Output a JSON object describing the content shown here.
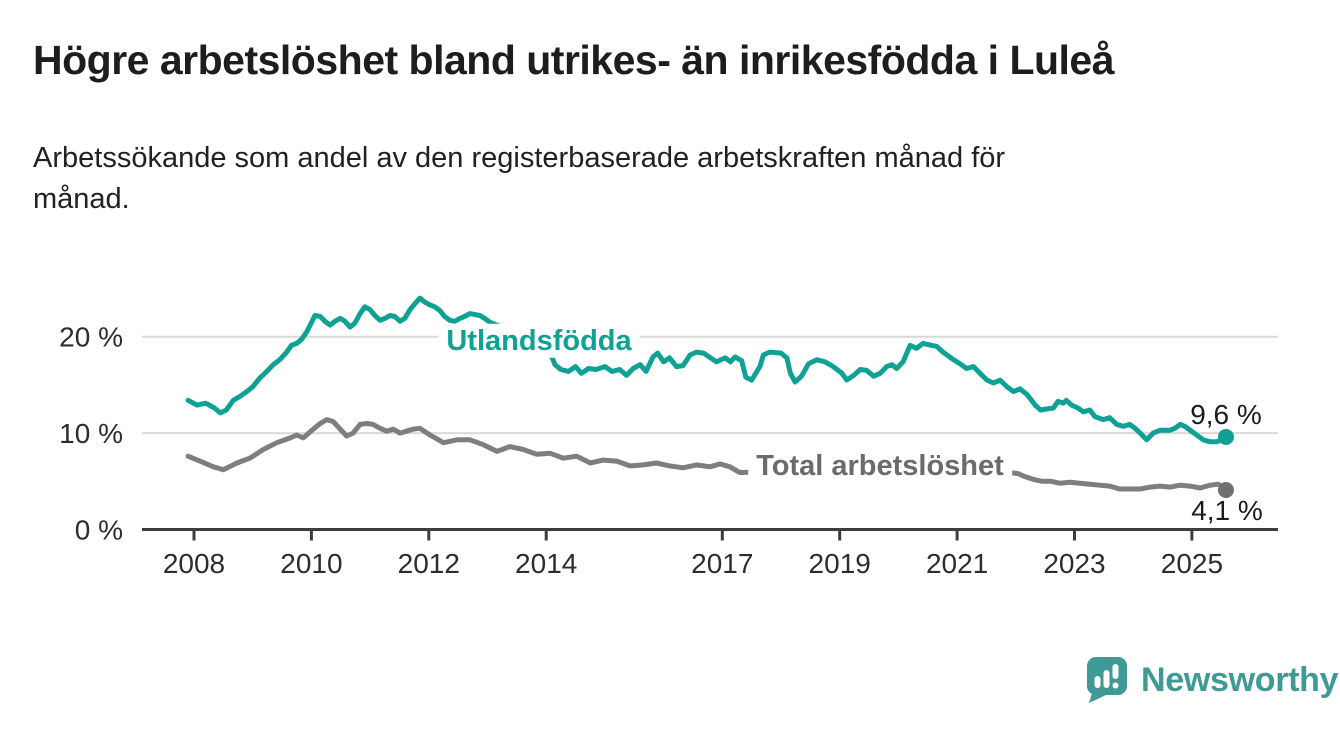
{
  "header": {
    "title": "Högre arbetslöshet bland utrikes- än inrikesfödda i Luleå",
    "subtitle": "Arbetssökande som andel av den registerbaserade arbetskraften månad för månad."
  },
  "chart_data": {
    "type": "line",
    "unit": "%",
    "x_domain": [
      2007.9,
      2025.75
    ],
    "y_domain": [
      0,
      25.5
    ],
    "grid": "horizontal-light-gray",
    "legend_position": "inline-labels",
    "x_tick_years": [
      2008,
      2010,
      2012,
      2014,
      2017,
      2019,
      2021,
      2023,
      2025
    ],
    "x_tick_labels": [
      "2008",
      "2010",
      "2012",
      "2014",
      "2017",
      "2019",
      "2021",
      "2023",
      "2025"
    ],
    "y_ticks": [
      0,
      10,
      20
    ],
    "y_tick_labels": [
      "0 %",
      "10 %",
      "20 %"
    ],
    "colors": {
      "utlandsfodda": "#10a195",
      "total": "#7e7e7e",
      "grid": "#d9d9d9",
      "axis": "#3d3d3d",
      "tick_text": "#2d2d2d"
    },
    "series": [
      {
        "name": "Utlandsfödda",
        "color": "#10a195",
        "end_value": 9.6,
        "end_label": "9,6 %",
        "points": [
          [
            2007.9,
            13.4
          ],
          [
            2008.05,
            12.9
          ],
          [
            2008.2,
            13.1
          ],
          [
            2008.35,
            12.6
          ],
          [
            2008.45,
            12.1
          ],
          [
            2008.55,
            12.4
          ],
          [
            2008.67,
            13.4
          ],
          [
            2008.78,
            13.8
          ],
          [
            2008.9,
            14.3
          ],
          [
            2009.0,
            14.8
          ],
          [
            2009.12,
            15.7
          ],
          [
            2009.24,
            16.4
          ],
          [
            2009.35,
            17.1
          ],
          [
            2009.46,
            17.6
          ],
          [
            2009.58,
            18.4
          ],
          [
            2009.66,
            19.1
          ],
          [
            2009.75,
            19.3
          ],
          [
            2009.83,
            19.7
          ],
          [
            2009.92,
            20.5
          ],
          [
            2009.98,
            21.2
          ],
          [
            2010.06,
            22.2
          ],
          [
            2010.15,
            22.1
          ],
          [
            2010.23,
            21.6
          ],
          [
            2010.32,
            21.2
          ],
          [
            2010.4,
            21.6
          ],
          [
            2010.49,
            21.9
          ],
          [
            2010.57,
            21.6
          ],
          [
            2010.66,
            21.0
          ],
          [
            2010.74,
            21.4
          ],
          [
            2010.83,
            22.4
          ],
          [
            2010.91,
            23.1
          ],
          [
            2011.0,
            22.8
          ],
          [
            2011.08,
            22.2
          ],
          [
            2011.17,
            21.7
          ],
          [
            2011.25,
            21.9
          ],
          [
            2011.34,
            22.2
          ],
          [
            2011.42,
            22.1
          ],
          [
            2011.51,
            21.6
          ],
          [
            2011.59,
            21.9
          ],
          [
            2011.68,
            22.8
          ],
          [
            2011.76,
            23.4
          ],
          [
            2011.85,
            24.0
          ],
          [
            2011.93,
            23.6
          ],
          [
            2012.02,
            23.3
          ],
          [
            2012.1,
            23.1
          ],
          [
            2012.19,
            22.7
          ],
          [
            2012.27,
            22.1
          ],
          [
            2012.36,
            21.7
          ],
          [
            2012.44,
            21.6
          ],
          [
            2012.53,
            21.9
          ],
          [
            2012.61,
            22.1
          ],
          [
            2012.7,
            22.4
          ],
          [
            2012.78,
            22.3
          ],
          [
            2012.87,
            22.2
          ],
          [
            2012.95,
            21.9
          ],
          [
            2013.04,
            21.5
          ],
          [
            2013.12,
            21.3
          ],
          [
            2013.2,
            21.1
          ],
          [
            2013.4,
            20.3
          ],
          [
            2013.6,
            19.4
          ],
          [
            2013.8,
            18.6
          ],
          [
            2013.95,
            18.2
          ],
          [
            2014.09,
            18.0
          ],
          [
            2014.15,
            17.1
          ],
          [
            2014.25,
            16.6
          ],
          [
            2014.38,
            16.4
          ],
          [
            2014.5,
            16.9
          ],
          [
            2014.6,
            16.2
          ],
          [
            2014.72,
            16.7
          ],
          [
            2014.85,
            16.6
          ],
          [
            2015.0,
            16.9
          ],
          [
            2015.12,
            16.4
          ],
          [
            2015.25,
            16.6
          ],
          [
            2015.37,
            16.0
          ],
          [
            2015.48,
            16.7
          ],
          [
            2015.6,
            17.1
          ],
          [
            2015.7,
            16.4
          ],
          [
            2015.82,
            17.9
          ],
          [
            2015.9,
            18.3
          ],
          [
            2016.0,
            17.4
          ],
          [
            2016.1,
            17.8
          ],
          [
            2016.22,
            16.9
          ],
          [
            2016.33,
            17.0
          ],
          [
            2016.45,
            18.1
          ],
          [
            2016.56,
            18.4
          ],
          [
            2016.68,
            18.3
          ],
          [
            2016.8,
            17.8
          ],
          [
            2016.9,
            17.4
          ],
          [
            2017.05,
            17.8
          ],
          [
            2017.14,
            17.4
          ],
          [
            2017.22,
            17.9
          ],
          [
            2017.33,
            17.5
          ],
          [
            2017.4,
            15.8
          ],
          [
            2017.5,
            15.5
          ],
          [
            2017.64,
            16.9
          ],
          [
            2017.7,
            18.1
          ],
          [
            2017.81,
            18.4
          ],
          [
            2018.0,
            18.3
          ],
          [
            2018.1,
            17.8
          ],
          [
            2018.16,
            16.2
          ],
          [
            2018.24,
            15.3
          ],
          [
            2018.35,
            15.9
          ],
          [
            2018.47,
            17.2
          ],
          [
            2018.61,
            17.6
          ],
          [
            2018.75,
            17.4
          ],
          [
            2018.89,
            16.9
          ],
          [
            2019.04,
            16.2
          ],
          [
            2019.12,
            15.5
          ],
          [
            2019.24,
            16.0
          ],
          [
            2019.35,
            16.6
          ],
          [
            2019.46,
            16.5
          ],
          [
            2019.58,
            15.9
          ],
          [
            2019.69,
            16.2
          ],
          [
            2019.8,
            16.9
          ],
          [
            2019.89,
            17.1
          ],
          [
            2019.97,
            16.7
          ],
          [
            2020.08,
            17.4
          ],
          [
            2020.2,
            19.1
          ],
          [
            2020.31,
            18.8
          ],
          [
            2020.42,
            19.3
          ],
          [
            2020.57,
            19.1
          ],
          [
            2020.65,
            19.0
          ],
          [
            2020.76,
            18.4
          ],
          [
            2020.94,
            17.6
          ],
          [
            2021.05,
            17.2
          ],
          [
            2021.16,
            16.7
          ],
          [
            2021.28,
            16.9
          ],
          [
            2021.39,
            16.2
          ],
          [
            2021.51,
            15.5
          ],
          [
            2021.62,
            15.2
          ],
          [
            2021.73,
            15.5
          ],
          [
            2021.85,
            14.8
          ],
          [
            2021.96,
            14.3
          ],
          [
            2022.07,
            14.6
          ],
          [
            2022.19,
            14.0
          ],
          [
            2022.33,
            12.9
          ],
          [
            2022.42,
            12.4
          ],
          [
            2022.52,
            12.5
          ],
          [
            2022.64,
            12.6
          ],
          [
            2022.72,
            13.3
          ],
          [
            2022.81,
            13.1
          ],
          [
            2022.86,
            13.4
          ],
          [
            2022.95,
            12.9
          ],
          [
            2023.06,
            12.6
          ],
          [
            2023.15,
            12.2
          ],
          [
            2023.26,
            12.4
          ],
          [
            2023.35,
            11.7
          ],
          [
            2023.49,
            11.4
          ],
          [
            2023.6,
            11.6
          ],
          [
            2023.72,
            10.9
          ],
          [
            2023.83,
            10.7
          ],
          [
            2023.94,
            10.9
          ],
          [
            2024.03,
            10.5
          ],
          [
            2024.12,
            10.0
          ],
          [
            2024.23,
            9.3
          ],
          [
            2024.34,
            10.0
          ],
          [
            2024.46,
            10.3
          ],
          [
            2024.63,
            10.3
          ],
          [
            2024.71,
            10.5
          ],
          [
            2024.8,
            10.9
          ],
          [
            2024.88,
            10.7
          ],
          [
            2024.97,
            10.3
          ],
          [
            2025.08,
            9.8
          ],
          [
            2025.19,
            9.3
          ],
          [
            2025.31,
            9.1
          ],
          [
            2025.42,
            9.1
          ],
          [
            2025.5,
            9.3
          ],
          [
            2025.58,
            9.6
          ]
        ]
      },
      {
        "name": "Total arbetslöshet",
        "color": "#7e7e7e",
        "end_value": 4.1,
        "end_label": "4,1 %",
        "points": [
          [
            2007.9,
            7.6
          ],
          [
            2008.1,
            7.1
          ],
          [
            2008.33,
            6.5
          ],
          [
            2008.5,
            6.2
          ],
          [
            2008.73,
            6.9
          ],
          [
            2008.95,
            7.4
          ],
          [
            2009.18,
            8.3
          ],
          [
            2009.41,
            9.0
          ],
          [
            2009.64,
            9.5
          ],
          [
            2009.75,
            9.8
          ],
          [
            2009.86,
            9.5
          ],
          [
            2010.03,
            10.4
          ],
          [
            2010.15,
            11.0
          ],
          [
            2010.26,
            11.4
          ],
          [
            2010.37,
            11.2
          ],
          [
            2010.49,
            10.4
          ],
          [
            2010.6,
            9.7
          ],
          [
            2010.71,
            10.0
          ],
          [
            2010.83,
            10.9
          ],
          [
            2010.94,
            11.0
          ],
          [
            2011.05,
            10.9
          ],
          [
            2011.17,
            10.5
          ],
          [
            2011.28,
            10.2
          ],
          [
            2011.4,
            10.4
          ],
          [
            2011.51,
            10.0
          ],
          [
            2011.62,
            10.2
          ],
          [
            2011.73,
            10.4
          ],
          [
            2011.85,
            10.5
          ],
          [
            2012.02,
            9.8
          ],
          [
            2012.25,
            9.0
          ],
          [
            2012.48,
            9.3
          ],
          [
            2012.7,
            9.3
          ],
          [
            2012.93,
            8.8
          ],
          [
            2013.16,
            8.1
          ],
          [
            2013.38,
            8.6
          ],
          [
            2013.61,
            8.3
          ],
          [
            2013.84,
            7.8
          ],
          [
            2014.07,
            7.9
          ],
          [
            2014.29,
            7.4
          ],
          [
            2014.52,
            7.6
          ],
          [
            2014.75,
            6.9
          ],
          [
            2014.97,
            7.2
          ],
          [
            2015.2,
            7.1
          ],
          [
            2015.43,
            6.6
          ],
          [
            2015.65,
            6.7
          ],
          [
            2015.88,
            6.9
          ],
          [
            2016.1,
            6.6
          ],
          [
            2016.33,
            6.4
          ],
          [
            2016.56,
            6.7
          ],
          [
            2016.79,
            6.5
          ],
          [
            2016.96,
            6.8
          ],
          [
            2017.13,
            6.5
          ],
          [
            2017.3,
            5.9
          ],
          [
            2017.6,
            6.0
          ],
          [
            2018.0,
            5.9
          ],
          [
            2018.5,
            5.8
          ],
          [
            2019.0,
            5.7
          ],
          [
            2019.5,
            5.8
          ],
          [
            2020.0,
            5.9
          ],
          [
            2020.5,
            6.0
          ],
          [
            2021.0,
            5.9
          ],
          [
            2021.5,
            5.8
          ],
          [
            2021.9,
            5.9
          ],
          [
            2022.04,
            5.8
          ],
          [
            2022.15,
            5.5
          ],
          [
            2022.3,
            5.2
          ],
          [
            2022.45,
            5.0
          ],
          [
            2022.6,
            5.0
          ],
          [
            2022.75,
            4.8
          ],
          [
            2022.92,
            4.9
          ],
          [
            2023.09,
            4.8
          ],
          [
            2023.26,
            4.7
          ],
          [
            2023.43,
            4.6
          ],
          [
            2023.6,
            4.5
          ],
          [
            2023.77,
            4.2
          ],
          [
            2023.94,
            4.2
          ],
          [
            2024.12,
            4.2
          ],
          [
            2024.29,
            4.4
          ],
          [
            2024.46,
            4.5
          ],
          [
            2024.63,
            4.4
          ],
          [
            2024.8,
            4.6
          ],
          [
            2024.97,
            4.5
          ],
          [
            2025.14,
            4.3
          ],
          [
            2025.31,
            4.6
          ],
          [
            2025.45,
            4.7
          ],
          [
            2025.58,
            4.1
          ]
        ]
      }
    ]
  },
  "footer": {
    "brand": "Newsworthy",
    "brand_color": "#3f9a96"
  }
}
